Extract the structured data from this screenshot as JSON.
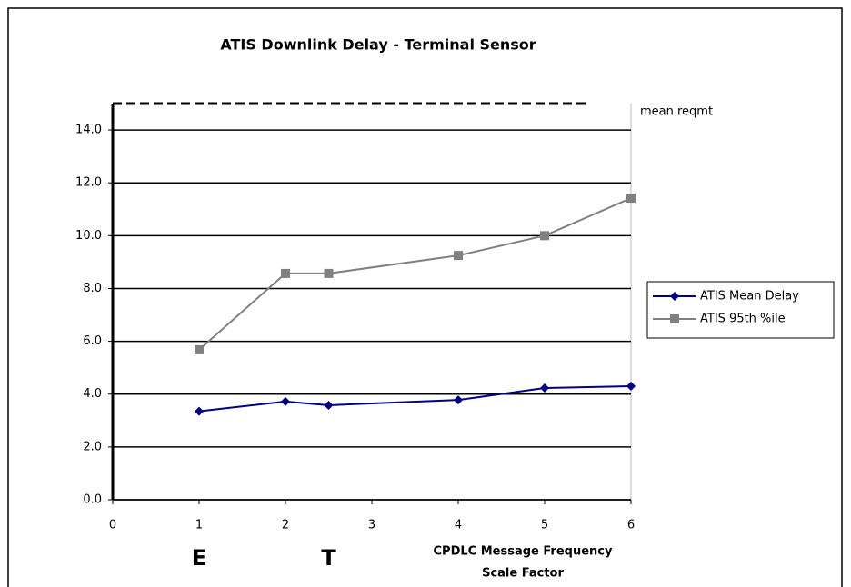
{
  "chart_data": {
    "type": "line",
    "title": "ATIS Downlink Delay - Terminal Sensor",
    "x_label": [
      "CPDLC Message Frequency",
      "Scale Factor"
    ],
    "xlim": [
      0,
      6
    ],
    "xticks": [
      0,
      1,
      2,
      3,
      4,
      5,
      6
    ],
    "ylim": [
      0,
      15
    ],
    "yticks": [
      {
        "value": 0,
        "label": "0.0"
      },
      {
        "value": 2,
        "label": "2.0"
      },
      {
        "value": 4,
        "label": "4.0"
      },
      {
        "value": 6,
        "label": "6.0"
      },
      {
        "value": 8,
        "label": "8.0"
      },
      {
        "value": 10,
        "label": "10.0"
      },
      {
        "value": 12,
        "label": "12.0"
      },
      {
        "value": 14,
        "label": "14.0"
      }
    ],
    "grid": true,
    "legend_position": "right",
    "series": [
      {
        "name": "ATIS Mean Delay",
        "color": "#000080",
        "marker": "diamond",
        "x": [
          1,
          2,
          2.5,
          4,
          5,
          6
        ],
        "values": [
          3.35,
          3.72,
          3.58,
          3.78,
          4.23,
          4.3
        ]
      },
      {
        "name": "ATIS 95th %ile",
        "color": "#808080",
        "marker": "square",
        "x": [
          1,
          2,
          2.5,
          4,
          5,
          6
        ],
        "values": [
          5.68,
          8.57,
          8.57,
          9.25,
          10.0,
          11.42
        ]
      }
    ],
    "reference_lines": [
      {
        "value": 15,
        "label": "mean reqmt",
        "style": "dashed"
      }
    ],
    "annotations": [
      {
        "text": "E",
        "x": 1
      },
      {
        "text": "T",
        "x": 2.5
      }
    ]
  }
}
